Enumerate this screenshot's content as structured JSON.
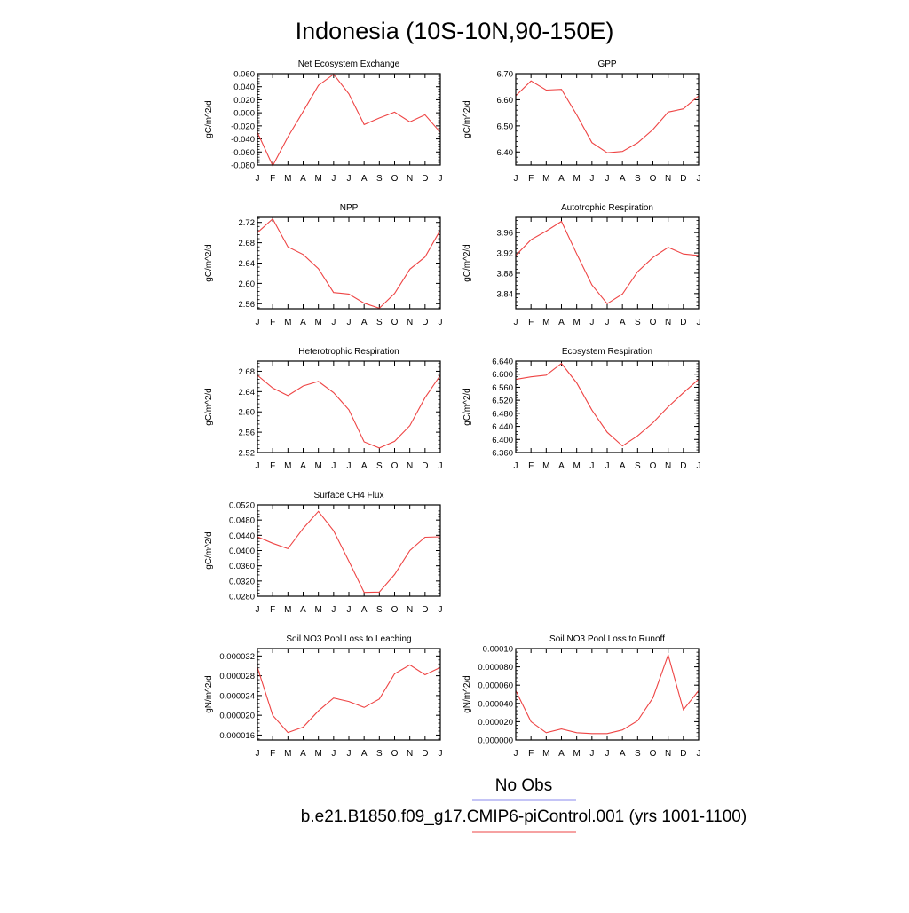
{
  "page_title": "Indonesia (10S-10N,90-150E)",
  "months": [
    "J",
    "F",
    "M",
    "A",
    "M",
    "J",
    "J",
    "A",
    "S",
    "O",
    "N",
    "D",
    "J"
  ],
  "legend": {
    "items": [
      {
        "label": "No Obs",
        "color": "#8888ee"
      },
      {
        "label": "b.e21.B1850.f09_g17.CMIP6-piControl.001 (yrs 1001-1100)",
        "color": "#ee4444"
      }
    ]
  },
  "chart_data": [
    {
      "type": "line",
      "title": "Net Ecosystem Exchange",
      "ylabel": "gC/m^2/d",
      "ylim": [
        -0.08,
        0.06
      ],
      "ytick_labels": [
        "-0.080",
        "-0.060",
        "-0.040",
        "-0.020",
        "0.000",
        "0.020",
        "0.040",
        "0.060"
      ],
      "values": [
        -0.03,
        -0.081,
        -0.037,
        0.002,
        0.042,
        0.059,
        0.029,
        -0.018,
        -0.008,
        0.001,
        -0.014,
        -0.003,
        -0.03
      ]
    },
    {
      "type": "line",
      "title": "GPP",
      "ylabel": "gC/m^2/d",
      "ylim": [
        6.35,
        6.7
      ],
      "ytick_labels": [
        "6.40",
        "6.50",
        "6.60",
        "6.70"
      ],
      "values": [
        6.615,
        6.672,
        6.637,
        6.64,
        6.542,
        6.436,
        6.397,
        6.402,
        6.435,
        6.486,
        6.553,
        6.565,
        6.615
      ]
    },
    {
      "type": "line",
      "title": "NPP",
      "ylabel": "gC/m^2/d",
      "ylim": [
        2.55,
        2.73
      ],
      "ytick_labels": [
        "2.56",
        "2.60",
        "2.64",
        "2.68",
        "2.72"
      ],
      "values": [
        2.7,
        2.727,
        2.672,
        2.657,
        2.629,
        2.582,
        2.579,
        2.561,
        2.551,
        2.58,
        2.628,
        2.652,
        2.705
      ]
    },
    {
      "type": "line",
      "title": "Autotrophic Respiration",
      "ylabel": "gC/m^2/d",
      "ylim": [
        3.81,
        3.99
      ],
      "ytick_labels": [
        "3.84",
        "3.88",
        "3.92",
        "3.96"
      ],
      "values": [
        3.915,
        3.946,
        3.963,
        3.982,
        3.918,
        3.857,
        3.82,
        3.839,
        3.883,
        3.911,
        3.931,
        3.918,
        3.915
      ]
    },
    {
      "type": "line",
      "title": "Heterotrophic Respiration",
      "ylabel": "gC/m^2/d",
      "ylim": [
        2.52,
        2.7
      ],
      "ytick_labels": [
        "2.52",
        "2.56",
        "2.60",
        "2.64",
        "2.68"
      ],
      "values": [
        2.672,
        2.647,
        2.632,
        2.651,
        2.66,
        2.638,
        2.604,
        2.541,
        2.529,
        2.542,
        2.573,
        2.628,
        2.672
      ]
    },
    {
      "type": "line",
      "title": "Ecosystem Respiration",
      "ylabel": "gC/m^2/d",
      "ylim": [
        6.36,
        6.64
      ],
      "ytick_labels": [
        "6.360",
        "6.400",
        "6.440",
        "6.480",
        "6.520",
        "6.560",
        "6.600",
        "6.640"
      ],
      "values": [
        6.584,
        6.592,
        6.597,
        6.633,
        6.573,
        6.49,
        6.422,
        6.38,
        6.411,
        6.451,
        6.5,
        6.543,
        6.584
      ]
    },
    {
      "type": "line",
      "title": "Surface CH4 Flux",
      "ylabel": "gC/m^2/d",
      "ylim": [
        0.028,
        0.052
      ],
      "ytick_labels": [
        "0.0280",
        "0.0320",
        "0.0360",
        "0.0400",
        "0.0440",
        "0.0480",
        "0.0520"
      ],
      "values": [
        0.0436,
        0.0419,
        0.0405,
        0.0458,
        0.0503,
        0.0452,
        0.0372,
        0.029,
        0.0291,
        0.0337,
        0.04,
        0.0435,
        0.0436
      ]
    },
    {
      "type": "line",
      "title": "Soil NO3 Pool Loss to Leaching",
      "ylabel": "gN/m^2/d",
      "ylim": [
        1.5e-05,
        3.35e-05
      ],
      "ytick_labels": [
        "0.000016",
        "0.000020",
        "0.000024",
        "0.000028",
        "0.000032"
      ],
      "values": [
        2.97e-05,
        2e-05,
        1.65e-05,
        1.76e-05,
        2.09e-05,
        2.35e-05,
        2.28e-05,
        2.16e-05,
        2.33e-05,
        2.84e-05,
        3.02e-05,
        2.82e-05,
        2.97e-05
      ]
    },
    {
      "type": "line",
      "title": "Soil NO3 Pool Loss to Runoff",
      "ylabel": "gN/m^2/d",
      "ylim": [
        0.0,
        0.0001
      ],
      "ytick_labels": [
        "0.000000",
        "0.000020",
        "0.000040",
        "0.000060",
        "0.000080",
        "0.00010"
      ],
      "values": [
        5.4e-05,
        2e-05,
        8e-06,
        1.2e-05,
        8e-06,
        7e-06,
        7e-06,
        1.1e-05,
        2.1e-05,
        4.6e-05,
        9.3e-05,
        3.3e-05,
        5.4e-05
      ]
    }
  ]
}
